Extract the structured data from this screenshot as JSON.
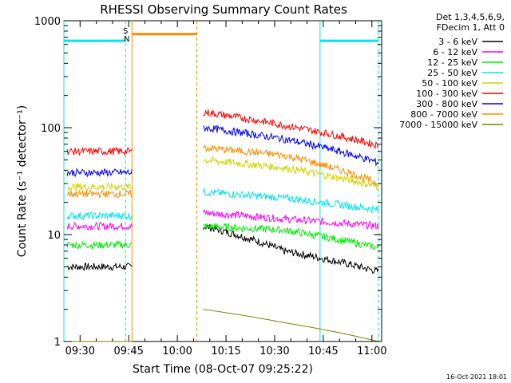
{
  "chart_data": {
    "type": "line",
    "title": "RHESSI Observing Summary Count Rates",
    "xlabel": "Start Time (08-Oct-07 09:25:22)",
    "ylabel": "Count Rate (s⁻¹ detector⁻¹)",
    "yscale": "log",
    "ylim": [
      1,
      1000
    ],
    "xlim": [
      "09:25",
      "11:03"
    ],
    "x_ticks": [
      "09:30",
      "09:45",
      "10:00",
      "10:15",
      "10:30",
      "10:45",
      "11:00"
    ],
    "y_ticks": [
      "1",
      "10",
      "100",
      "1000"
    ],
    "legend_position": "top-right",
    "legend_header": [
      "Det 1,3,4,5,6,9,",
      "FDecim 1, Att 0"
    ],
    "footer_date": "16-Oct-2021 18:01",
    "markers": {
      "S": {
        "label": "S",
        "color": "#ff8c00"
      },
      "N": {
        "label": "N",
        "color": "#00e5ee"
      }
    },
    "flags": [
      {
        "name": "saa",
        "color": "#ff8c00",
        "x_start": "09:46",
        "x_end": "10:06",
        "y": 750
      },
      {
        "name": "night-1",
        "color": "#00e5ee",
        "x_start": "09:25",
        "x_end": "09:44",
        "y": 650
      },
      {
        "name": "night-2",
        "color": "#00e5ee",
        "x_start": "10:44",
        "x_end": "11:02",
        "y": 650
      }
    ],
    "gaps": [
      "09:46-10:08"
    ],
    "series": [
      {
        "name": "3 - 6 keV",
        "color": "#000000",
        "values": {
          "pre": 5,
          "peak": 12,
          "mid": 7,
          "end": 4.5
        }
      },
      {
        "name": "6 - 12 keV",
        "color": "#ff00ff",
        "values": {
          "pre": 12,
          "peak": 16,
          "mid": 14,
          "end": 12
        }
      },
      {
        "name": "12 - 25 keV",
        "color": "#00ee00",
        "values": {
          "pre": 8,
          "peak": 12,
          "mid": 11,
          "end": 7.5
        }
      },
      {
        "name": "25 - 50 keV",
        "color": "#00e5ee",
        "values": {
          "pre": 15,
          "peak": 25,
          "mid": 22,
          "end": 17
        }
      },
      {
        "name": "50 - 100 keV",
        "color": "#d4d400",
        "values": {
          "pre": 28,
          "peak": 50,
          "mid": 42,
          "end": 28
        }
      },
      {
        "name": "100 - 300 keV",
        "color": "#ff0000",
        "values": {
          "pre": 60,
          "peak": 140,
          "mid": 105,
          "end": 68
        }
      },
      {
        "name": "300 - 800 keV",
        "color": "#0000ee",
        "values": {
          "pre": 38,
          "peak": 100,
          "mid": 78,
          "end": 47
        }
      },
      {
        "name": "800 - 7000 keV",
        "color": "#ff8c00",
        "values": {
          "pre": 24,
          "peak": 65,
          "mid": 55,
          "end": 30
        }
      },
      {
        "name": "7000 - 15000 keV",
        "color": "#808000",
        "values": {
          "pre": 1,
          "peak": 2,
          "mid": 1.5,
          "end": 1
        }
      }
    ]
  }
}
